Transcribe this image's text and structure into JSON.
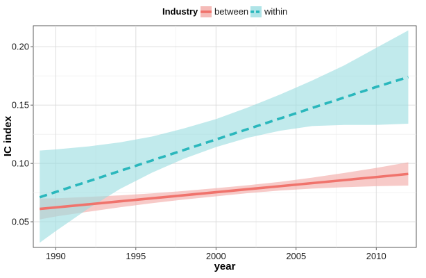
{
  "chart_data": {
    "type": "line",
    "title": "",
    "xlabel": "year",
    "ylabel": "IC index",
    "xlim": [
      1988.6,
      2012.5
    ],
    "ylim": [
      0.028,
      0.218
    ],
    "xticks": [
      1990,
      1995,
      2000,
      2005,
      2010
    ],
    "xtick_labels": [
      "1990",
      "1995",
      "2000",
      "2005",
      "2010"
    ],
    "yticks": [
      0.05,
      0.1,
      0.15,
      0.2
    ],
    "ytick_labels": [
      "0.05",
      "0.10",
      "0.15",
      "0.20"
    ],
    "grid": true,
    "legend": {
      "title": "Industry",
      "placement": "top"
    },
    "x": [
      1989,
      1990,
      1992,
      1994,
      1996,
      1998,
      2000,
      2002,
      2004,
      2006,
      2008,
      2010,
      2012
    ],
    "series": [
      {
        "name": "between",
        "style": "solid",
        "color": "#f0736c",
        "band_color": "#f2aaa6",
        "values": [
          0.061,
          0.0623,
          0.0649,
          0.0675,
          0.0701,
          0.0727,
          0.0753,
          0.0779,
          0.0805,
          0.0831,
          0.0857,
          0.0883,
          0.091
        ],
        "lower": [
          0.052,
          0.0545,
          0.0585,
          0.0624,
          0.0659,
          0.069,
          0.0718,
          0.0745,
          0.0768,
          0.0784,
          0.0796,
          0.0805,
          0.081
        ],
        "upper": [
          0.07,
          0.0701,
          0.0713,
          0.0726,
          0.0743,
          0.0764,
          0.0788,
          0.0813,
          0.0842,
          0.0878,
          0.0918,
          0.0961,
          0.101
        ]
      },
      {
        "name": "within",
        "style": "dashed",
        "color": "#2ab7bc",
        "band_color": "#9bdde1",
        "values": [
          0.071,
          0.0755,
          0.0845,
          0.0935,
          0.1025,
          0.1115,
          0.1205,
          0.1295,
          0.1385,
          0.1475,
          0.1565,
          0.1655,
          0.174
        ],
        "lower": [
          0.032,
          0.042,
          0.061,
          0.078,
          0.092,
          0.104,
          0.114,
          0.122,
          0.128,
          0.132,
          0.133,
          0.133,
          0.134
        ],
        "upper": [
          0.111,
          0.112,
          0.1145,
          0.118,
          0.123,
          0.13,
          0.138,
          0.148,
          0.159,
          0.171,
          0.184,
          0.199,
          0.214
        ]
      }
    ]
  }
}
